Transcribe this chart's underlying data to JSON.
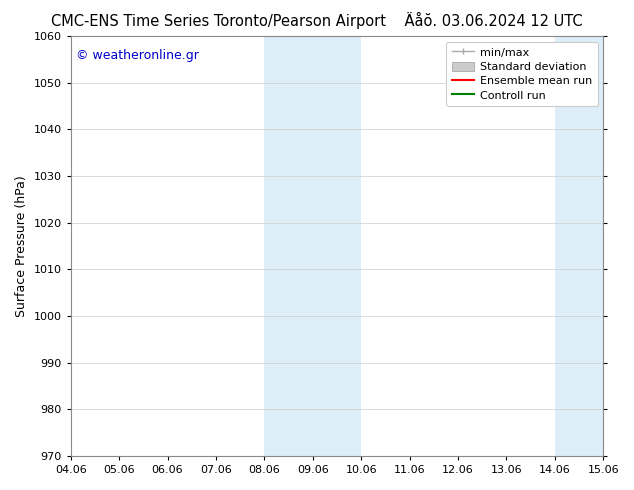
{
  "title_left": "CMC-ENS Time Series Toronto/Pearson Airport",
  "title_right": "Äåŏ. 03.06.2024 12 UTC",
  "ylabel": "Surface Pressure (hPa)",
  "ylim": [
    970,
    1060
  ],
  "yticks": [
    970,
    980,
    990,
    1000,
    1010,
    1020,
    1030,
    1040,
    1050,
    1060
  ],
  "xticklabels": [
    "04.06",
    "05.06",
    "06.06",
    "07.06",
    "08.06",
    "09.06",
    "10.06",
    "11.06",
    "12.06",
    "13.06",
    "14.06",
    "15.06"
  ],
  "watermark": "© weatheronline.gr",
  "watermark_color": "#0000cc",
  "background_color": "#ffffff",
  "shaded_regions": [
    {
      "xstart": 4,
      "xend": 5,
      "color": "#ddeef8"
    },
    {
      "xstart": 5,
      "xend": 6,
      "color": "#ddeef8"
    },
    {
      "xstart": 10,
      "xend": 11,
      "color": "#ddeef8"
    },
    {
      "xstart": 11,
      "xend": 12,
      "color": "#ddeef8"
    }
  ],
  "legend_entries": [
    {
      "label": "min/max",
      "type": "minmax"
    },
    {
      "label": "Standard deviation",
      "type": "stddev"
    },
    {
      "label": "Ensemble mean run",
      "type": "line",
      "color": "#ff0000",
      "lw": 1.5
    },
    {
      "label": "Controll run",
      "type": "line",
      "color": "#008000",
      "lw": 1.5
    }
  ],
  "title_fontsize": 10.5,
  "axis_fontsize": 9,
  "tick_fontsize": 8,
  "watermark_fontsize": 9,
  "fig_width": 6.34,
  "fig_height": 4.9,
  "dpi": 100
}
